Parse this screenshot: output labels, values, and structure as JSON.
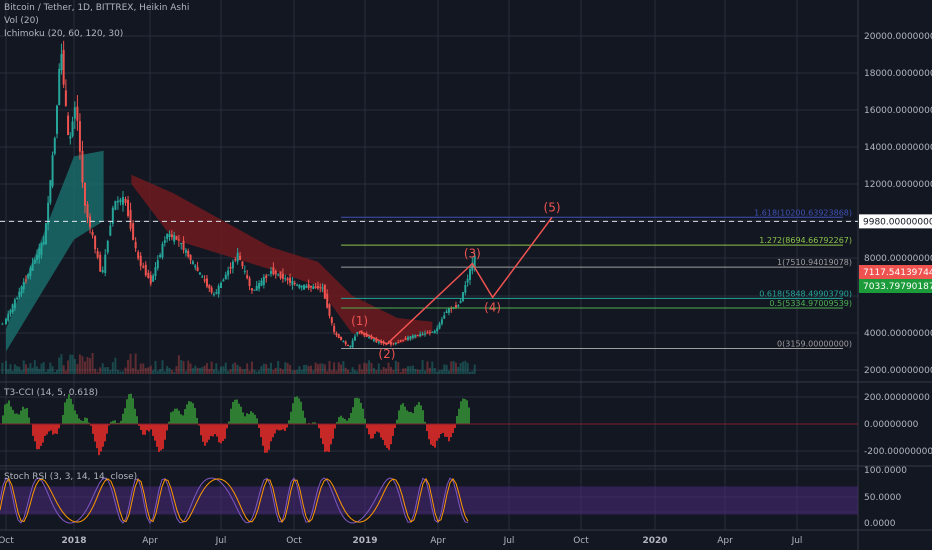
{
  "header": {
    "title": "Bitcoin / Tether, 1D, BITTREX, Heikin Ashi",
    "vol": "Vol (20)",
    "ichimoku": "Ichimoku (20, 60, 120, 30)"
  },
  "colors": {
    "background": "#131722",
    "grid": "#2a2e39",
    "axis_text": "#b2b5be",
    "bull": "#26a69a",
    "bear": "#ef5350",
    "wave": "#ef5350",
    "cloud_bull": "#1b6b68",
    "cloud_bear": "#6e1a1f",
    "fib_top": "#3f51b5",
    "fib_1272": "#8bc34a",
    "fib_1": "#9e9e9e",
    "fib_0618": "#26a69a",
    "fib_05": "#4caf50",
    "fib_0": "#9e9e9e",
    "cci_pos": "#2e7d32",
    "cci_neg": "#c62828",
    "rsi_band": "#4a2a7a",
    "rsi_k": "#7e57c2",
    "rsi_d": "#ff9800"
  },
  "chart_data": [
    {
      "type": "candlestick",
      "title": "Bitcoin / Tether, 1D, BITTREX, Heikin Ashi",
      "x_ticks": [
        "Oct",
        "2018",
        "Apr",
        "Jul",
        "Oct",
        "2019",
        "Apr",
        "Jul",
        "Oct",
        "2020",
        "Apr",
        "Jul"
      ],
      "y_ticks": [
        "20000.00000000",
        "18000.00000000",
        "16000.00000000",
        "14000.00000000",
        "12000.00000000",
        "8000.00000000",
        "4000.00000000",
        "2000.00000000"
      ],
      "ylim": [
        1500,
        21000
      ],
      "price_path": [
        [
          "2017-09-01",
          4300
        ],
        [
          "2017-10-01",
          4500
        ],
        [
          "2017-11-01",
          7000
        ],
        [
          "2017-11-25",
          9000
        ],
        [
          "2017-12-10",
          15000
        ],
        [
          "2017-12-17",
          19500
        ],
        [
          "2017-12-28",
          14000
        ],
        [
          "2018-01-06",
          16500
        ],
        [
          "2018-01-16",
          11000
        ],
        [
          "2018-02-06",
          7000
        ],
        [
          "2018-02-20",
          11000
        ],
        [
          "2018-03-05",
          11200
        ],
        [
          "2018-03-20",
          8000
        ],
        [
          "2018-04-05",
          6700
        ],
        [
          "2018-04-25",
          9300
        ],
        [
          "2018-05-10",
          9000
        ],
        [
          "2018-06-01",
          7500
        ],
        [
          "2018-06-25",
          6000
        ],
        [
          "2018-07-25",
          8200
        ],
        [
          "2018-08-12",
          6200
        ],
        [
          "2018-09-05",
          7300
        ],
        [
          "2018-10-10",
          6500
        ],
        [
          "2018-11-10",
          6400
        ],
        [
          "2018-11-25",
          4000
        ],
        [
          "2018-12-15",
          3200
        ],
        [
          "2018-12-25",
          4100
        ],
        [
          "2019-01-20",
          3500
        ],
        [
          "2019-02-08",
          3400
        ],
        [
          "2019-03-01",
          3800
        ],
        [
          "2019-04-01",
          4100
        ],
        [
          "2019-04-15",
          5200
        ],
        [
          "2019-05-01",
          5500
        ],
        [
          "2019-05-20",
          8000
        ]
      ],
      "cloud": [
        {
          "name": "bull",
          "points": [
            [
              "2017-10-01",
              3000,
              4200
            ],
            [
              "2018-01-01",
              9000,
              13500
            ],
            [
              "2018-02-05",
              10000,
              13800
            ]
          ]
        },
        {
          "name": "bear",
          "points": [
            [
              "2018-03-10",
              12000,
              12500
            ],
            [
              "2018-05-01",
              9000,
              11500
            ],
            [
              "2018-09-01",
              7400,
              8600
            ],
            [
              "2018-11-01",
              6500,
              7800
            ],
            [
              "2018-12-15",
              4000,
              6000
            ],
            [
              "2019-02-10",
              3400,
              4800
            ],
            [
              "2019-03-25",
              4000,
              4600
            ]
          ]
        }
      ],
      "fib_levels": [
        {
          "label": "1.618(10200.63923868)",
          "value": 10200.63923868
        },
        {
          "label": "1.272(8694.66792267)",
          "value": 8694.66792267
        },
        {
          "label": "1(7510.94019078)",
          "value": 7510.94019078
        },
        {
          "label": "0.618(5848.49903790)",
          "value": 5848.4990379
        },
        {
          "label": "0.5(5334.97009539)",
          "value": 5334.97009539
        },
        {
          "label": "0(3159.00000000)",
          "value": 3159.0
        }
      ],
      "dashed_level": {
        "value": 9980.0,
        "label": "9980.00000000"
      },
      "price_tags": [
        {
          "label": "7117.54139744",
          "value": 7117.54139744,
          "color": "#ef5350"
        },
        {
          "label": "7033.79790187",
          "value": 7033.79790187,
          "color": "#1b9b3a"
        }
      ],
      "waves": [
        {
          "label": "(1)",
          "date": "2018-12-25",
          "value": 4100
        },
        {
          "label": "(2)",
          "date": "2019-01-28",
          "value": 3400
        },
        {
          "label": "(3)",
          "date": "2019-05-15",
          "value": 7700
        },
        {
          "label": "(4)",
          "date": "2019-06-10",
          "value": 5900
        },
        {
          "label": "(5)",
          "date": "2019-08-25",
          "value": 10200
        }
      ]
    },
    {
      "type": "bar",
      "title": "T3-CCI (14, 5, 0.618)",
      "y_ticks": [
        "200.00000000",
        "0.00000000",
        "-200.00000000"
      ],
      "ylim": [
        -280,
        280
      ]
    },
    {
      "type": "line",
      "title": "Stoch RSI (3, 3, 14, 14, close)",
      "y_ticks": [
        "100.0000",
        "50.0000",
        "0.0000"
      ],
      "ylim": [
        -10,
        110
      ],
      "band": [
        20,
        80
      ]
    }
  ]
}
